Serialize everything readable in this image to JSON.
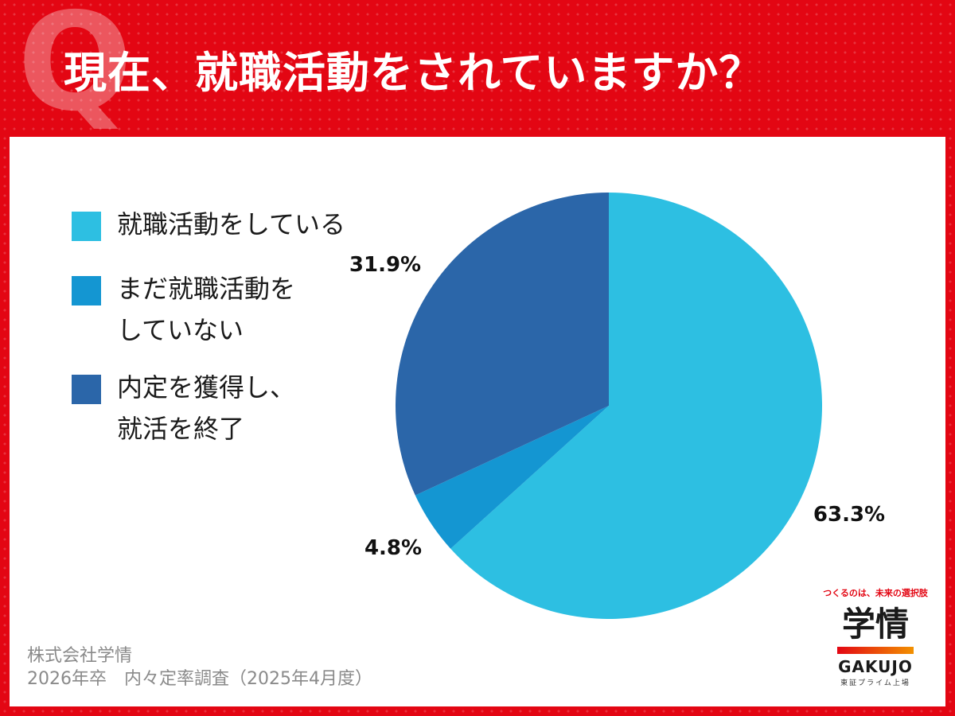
{
  "title": "現在、就職活動をされていますか？",
  "q_mark": "Q",
  "chart_data": {
    "type": "pie",
    "title": "現在、就職活動をされていますか？",
    "slices": [
      {
        "label": "就職活動をしている",
        "value": 63.3,
        "value_label": "63.3%",
        "color": "#2dbfe2"
      },
      {
        "label": "まだ就職活動を\nしていない",
        "value": 4.8,
        "value_label": "4.8%",
        "color": "#1496d2"
      },
      {
        "label": "内定を獲得し、\n就活を終了",
        "value": 31.9,
        "value_label": "31.9%",
        "color": "#2b66a9"
      }
    ],
    "legend_position": "left",
    "start_angle": "12 o'clock",
    "direction": "clockwise"
  },
  "footer": {
    "line1": "株式会社学情",
    "line2": "2026年卒　内々定率調査（2025年4月度）"
  },
  "logo": {
    "tagline": "つくるのは、未来の選択肢",
    "main": "学情",
    "en": "GAKUJO",
    "sub": "東証プライム上場"
  },
  "colors": {
    "background": "#e30613",
    "panel": "#ffffff"
  }
}
